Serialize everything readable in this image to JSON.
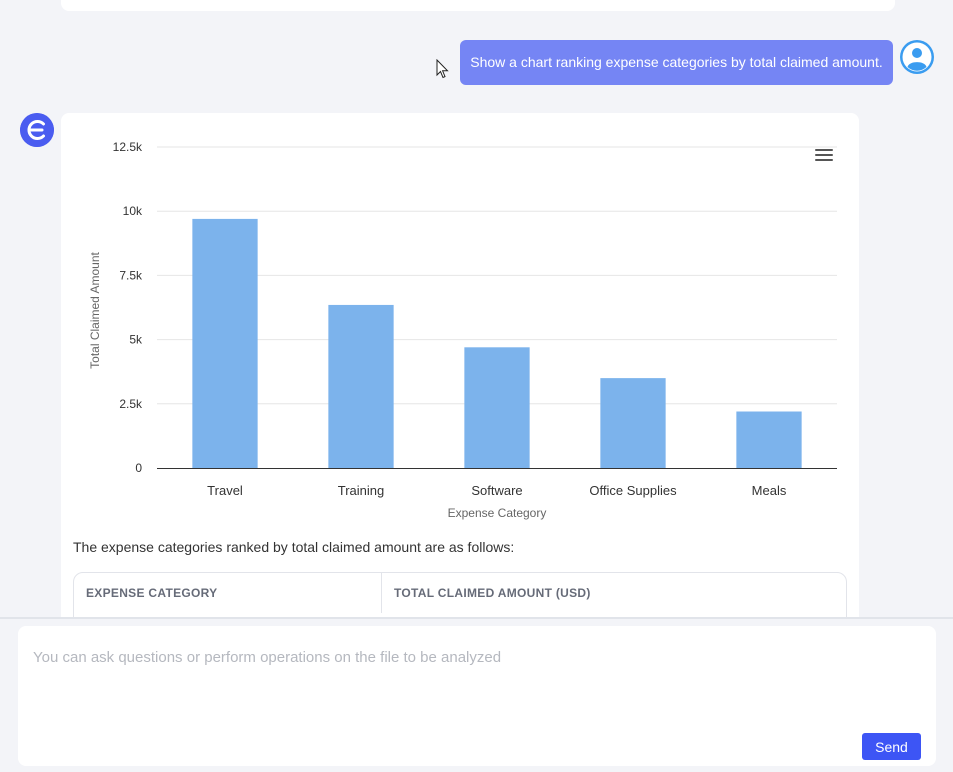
{
  "conversation": {
    "user_message": "Show a chart ranking expense categories by total claimed amount.",
    "assistant": {
      "summary_text": "The expense categories ranked by total claimed amount are as follows:",
      "table": {
        "headers": [
          "EXPENSE CATEGORY",
          "TOTAL CLAIMED AMOUNT (USD)"
        ]
      }
    }
  },
  "chart_data": {
    "type": "bar",
    "categories": [
      "Travel",
      "Training",
      "Software",
      "Office Supplies",
      "Meals"
    ],
    "values": [
      9700,
      6350,
      4700,
      3500,
      2200
    ],
    "xlabel": "Expense Category",
    "ylabel": "Total Claimed Amount",
    "ylim": [
      0,
      12500
    ],
    "yticks": [
      0,
      2500,
      5000,
      7500,
      10000,
      12500
    ],
    "ytick_labels": [
      "0",
      "2.5k",
      "5k",
      "7.5k",
      "10k",
      "12.5k"
    ],
    "bar_color": "#7cb3ec",
    "grid": true
  },
  "input": {
    "placeholder": "You can ask questions or perform operations on the file to be analyzed",
    "send_label": "Send"
  },
  "colors": {
    "accent": "#3d55f5",
    "user_bubble": "#7585f4",
    "avatar": "#4a5cf0"
  },
  "icons": {
    "user_avatar": "user-icon",
    "bot_avatar": "assistant-logo-icon",
    "chart_menu": "hamburger-menu-icon",
    "cursor": "mouse-cursor-icon"
  }
}
